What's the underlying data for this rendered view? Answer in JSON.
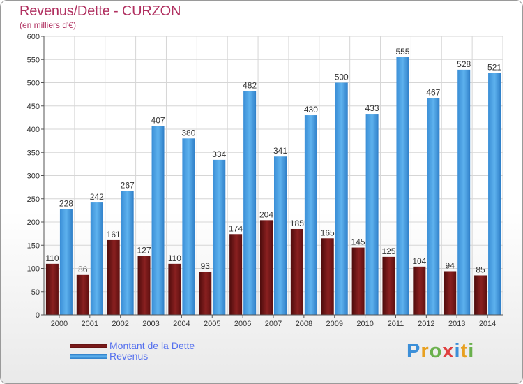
{
  "title": "Revenus/Dette - CURZON",
  "subtitle": "(en milliers d'€)",
  "colors": {
    "dette": "#7a1818",
    "revenus": "#4a9fe0",
    "title": "#b03060",
    "legend_text": "#5570ee"
  },
  "legend": {
    "dette_label": "Montant de la Dette",
    "revenus_label": "Revenus"
  },
  "logo": {
    "text": "Proxiti",
    "letters": [
      "P",
      "r",
      "o",
      "x",
      "i",
      "t",
      "i"
    ]
  },
  "chart_data": {
    "type": "bar",
    "categories": [
      "2000",
      "2001",
      "2002",
      "2003",
      "2004",
      "2005",
      "2006",
      "2007",
      "2008",
      "2009",
      "2010",
      "2011",
      "2012",
      "2013",
      "2014"
    ],
    "series": [
      {
        "name": "Montant de la Dette",
        "values": [
          110,
          86,
          161,
          127,
          110,
          93,
          174,
          204,
          185,
          165,
          145,
          125,
          104,
          94,
          85
        ]
      },
      {
        "name": "Revenus",
        "values": [
          228,
          242,
          267,
          407,
          380,
          334,
          482,
          341,
          430,
          500,
          433,
          555,
          467,
          528,
          521
        ]
      }
    ],
    "yticks": [
      0,
      50,
      100,
      150,
      200,
      250,
      300,
      350,
      400,
      450,
      500,
      550,
      600
    ],
    "ylim": [
      0,
      600
    ],
    "grid": true,
    "legend_position": "bottom-left"
  }
}
